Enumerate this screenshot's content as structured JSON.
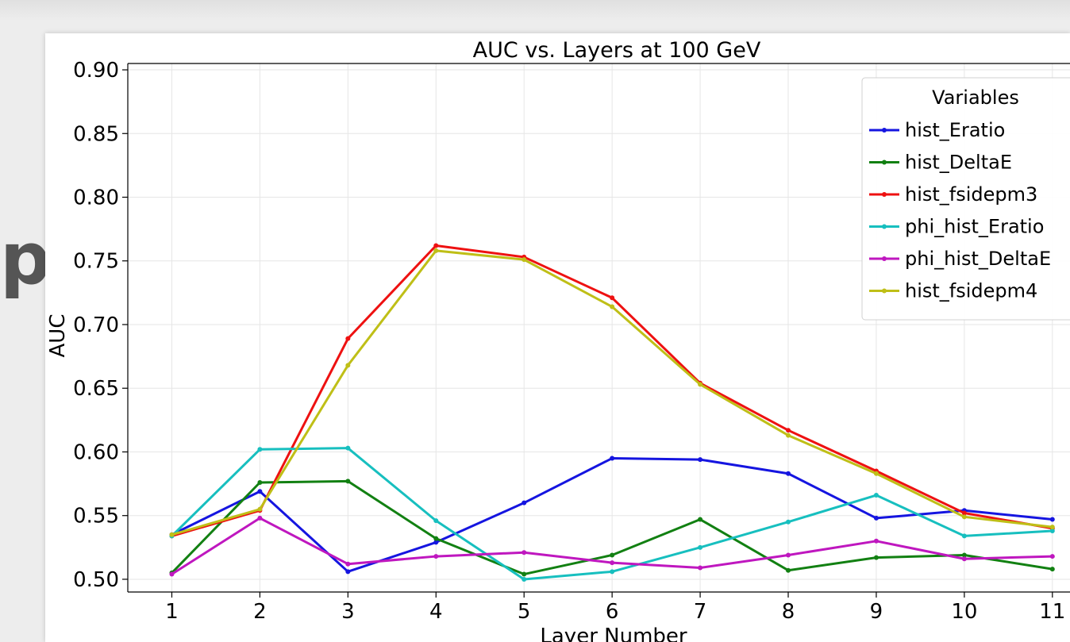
{
  "side_text": "p",
  "chart_data": {
    "type": "line",
    "title": "AUC vs. Layers at 100 GeV",
    "xlabel": "Layer Number",
    "ylabel": "AUC",
    "x": [
      1,
      2,
      3,
      4,
      5,
      6,
      7,
      8,
      9,
      10,
      11
    ],
    "xticks": [
      "1",
      "2",
      "3",
      "4",
      "5",
      "6",
      "7",
      "8",
      "9",
      "10",
      "11"
    ],
    "yticks": [
      "0.50",
      "0.55",
      "0.60",
      "0.65",
      "0.70",
      "0.75",
      "0.80",
      "0.85",
      "0.90"
    ],
    "ylim": [
      0.49,
      0.905
    ],
    "xlim": [
      0.5,
      11.2
    ],
    "grid": true,
    "legend_title": "Variables",
    "legend_position": "top-right",
    "series": [
      {
        "name": "hist_Eratio",
        "color": "#1515e0",
        "values": [
          0.535,
          0.569,
          0.506,
          0.529,
          0.56,
          0.595,
          0.594,
          0.583,
          0.548,
          0.554,
          0.547
        ]
      },
      {
        "name": "hist_DeltaE",
        "color": "#128012",
        "values": [
          0.505,
          0.576,
          0.577,
          0.532,
          0.504,
          0.519,
          0.547,
          0.507,
          0.517,
          0.519,
          0.508
        ]
      },
      {
        "name": "hist_fsidepm3",
        "color": "#ee1111",
        "values": [
          0.534,
          0.554,
          0.689,
          0.762,
          0.753,
          0.721,
          0.654,
          0.617,
          0.585,
          0.552,
          0.54
        ]
      },
      {
        "name": "phi_hist_Eratio",
        "color": "#17bfbf",
        "values": [
          0.534,
          0.602,
          0.603,
          0.546,
          0.5,
          0.506,
          0.525,
          0.545,
          0.566,
          0.534,
          0.538
        ]
      },
      {
        "name": "phi_hist_DeltaE",
        "color": "#bf17bf",
        "values": [
          0.504,
          0.548,
          0.512,
          0.518,
          0.521,
          0.513,
          0.509,
          0.519,
          0.53,
          0.516,
          0.518
        ]
      },
      {
        "name": "hist_fsidepm4",
        "color": "#bfbf17",
        "values": [
          0.535,
          0.555,
          0.668,
          0.758,
          0.751,
          0.714,
          0.653,
          0.613,
          0.583,
          0.549,
          0.541
        ]
      }
    ]
  }
}
